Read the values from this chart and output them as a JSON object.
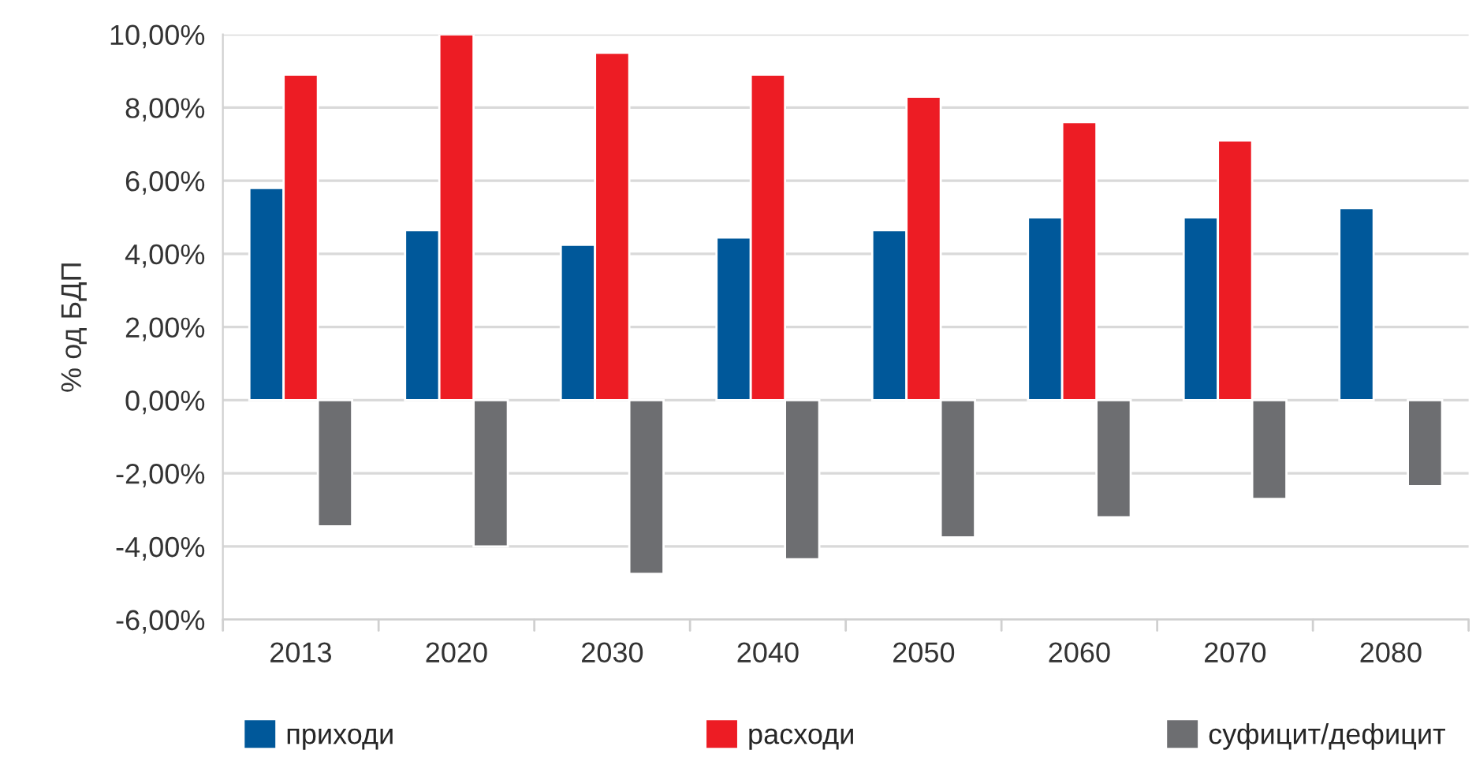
{
  "chart_data": {
    "type": "bar",
    "ylabel": "% од БДП",
    "categories": [
      "2013",
      "2020",
      "2030",
      "2040",
      "2050",
      "2060",
      "2070",
      "2080"
    ],
    "series": [
      {
        "name": "приходи",
        "color": "#00589a",
        "values": [
          5.8,
          4.65,
          4.25,
          4.45,
          4.65,
          5.0,
          5.0,
          5.25
        ]
      },
      {
        "name": "расходи",
        "color": "#ed1c24",
        "values": [
          8.9,
          10.0,
          9.5,
          8.9,
          8.3,
          7.6,
          7.1,
          null
        ]
      },
      {
        "name": "суфицит/дефицит",
        "color": "#6d6e71",
        "values": [
          -3.45,
          -4.0,
          -4.75,
          -4.35,
          -3.75,
          -3.2,
          -2.7,
          -2.35
        ]
      }
    ],
    "ylim": [
      -6,
      10
    ],
    "yticks": [
      {
        "value": -6,
        "label": "-6,00%"
      },
      {
        "value": -4,
        "label": "-4,00%"
      },
      {
        "value": -2,
        "label": "-2,00%"
      },
      {
        "value": 0,
        "label": "0,00%"
      },
      {
        "value": 2,
        "label": "2,00%"
      },
      {
        "value": 4,
        "label": "4,00%"
      },
      {
        "value": 6,
        "label": "6,00%"
      },
      {
        "value": 8,
        "label": "8,00%"
      },
      {
        "value": 10,
        "label": "10,00%"
      }
    ],
    "grid": "y",
    "legend": "bottom"
  }
}
